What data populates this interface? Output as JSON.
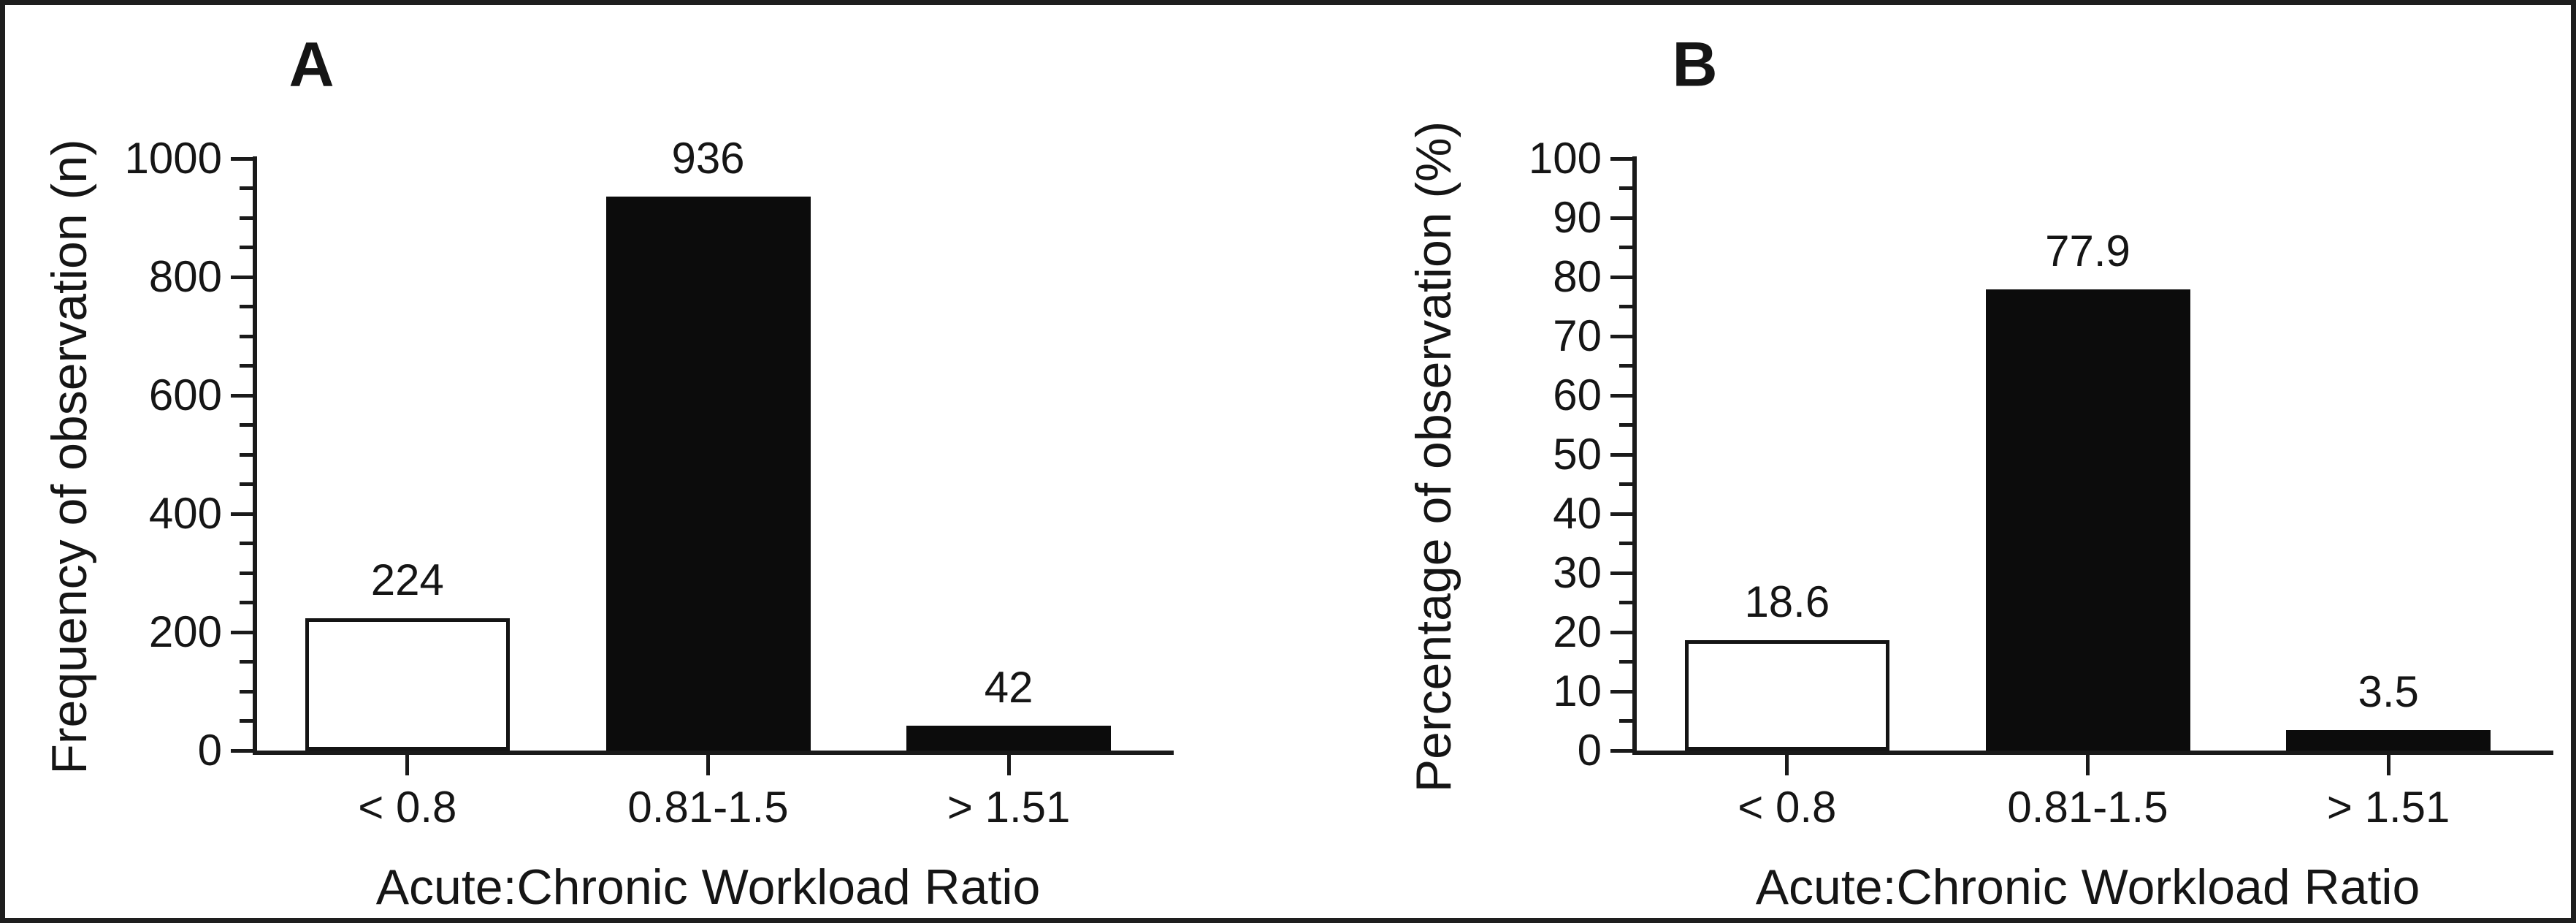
{
  "figure": {
    "background_color": "#ffffff",
    "frame_color": "#1e1e1e",
    "text_color": "#151515",
    "bar_fill_black": "#0c0c0c",
    "bar_fill_white": "#ffffff"
  },
  "chart_data": [
    {
      "type": "bar",
      "panel_label": "A",
      "categories": [
        "< 0.8",
        "0.81-1.5",
        "> 1.51"
      ],
      "values": [
        224,
        936,
        42
      ],
      "value_labels": [
        "224",
        "936",
        "42"
      ],
      "bar_styles": [
        "white",
        "black",
        "black"
      ],
      "xlabel": "Acute:Chronic Workload Ratio",
      "ylabel": "Frequency of observation (n)",
      "ylim": [
        0,
        1000
      ],
      "ytick_major_step": 200,
      "ytick_minor_step": 50,
      "ytick_labels": [
        "0",
        "200",
        "400",
        "600",
        "800",
        "1000"
      ],
      "grid": false,
      "legend": "none"
    },
    {
      "type": "bar",
      "panel_label": "B",
      "categories": [
        "< 0.8",
        "0.81-1.5",
        "> 1.51"
      ],
      "values": [
        18.6,
        77.9,
        3.5
      ],
      "value_labels": [
        "18.6",
        "77.9",
        "3.5"
      ],
      "bar_styles": [
        "white",
        "black",
        "black"
      ],
      "xlabel": "Acute:Chronic Workload Ratio",
      "ylabel": "Percentage of observation (%)",
      "ylim": [
        0,
        100
      ],
      "ytick_major_step": 10,
      "ytick_minor_step": 5,
      "ytick_labels": [
        "0",
        "10",
        "20",
        "30",
        "40",
        "50",
        "60",
        "70",
        "80",
        "90",
        "100"
      ],
      "grid": false,
      "legend": "none"
    }
  ]
}
